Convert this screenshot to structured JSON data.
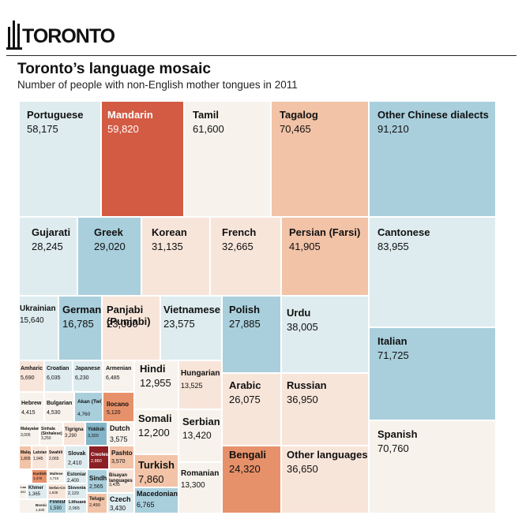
{
  "header": {
    "logo_text": "TORONTO",
    "title": "Toronto’s language mosaic",
    "subtitle": "Number of people with non-English mother tongues in 2011"
  },
  "palette": {
    "blue": "#a9cfdc",
    "pale_blue": "#deecef",
    "peach": "#f2c3a7",
    "light_peach": "#f8e5da",
    "cream": "#f7f3ec",
    "coral": "#e7916a",
    "red": "#d35a43",
    "dark_red": "#8b1f25",
    "mid_blue": "#83b4c8"
  },
  "chart_data": {
    "type": "treemap",
    "title": "Toronto’s language mosaic",
    "subtitle": "Number of people with non-English mother tongues in 2011",
    "items": [
      {
        "name": "Portuguese",
        "value_label": "58,175",
        "value": 58175
      },
      {
        "name": "Mandarin",
        "value_label": "59,820",
        "value": 59820
      },
      {
        "name": "Tamil",
        "value_label": "61,600",
        "value": 61600
      },
      {
        "name": "Tagalog",
        "value_label": "70,465",
        "value": 70465
      },
      {
        "name": "Other Chinese dialects",
        "value_label": "91,210",
        "value": 91210
      },
      {
        "name": "Gujarati",
        "value_label": "28,245",
        "value": 28245
      },
      {
        "name": "Greek",
        "value_label": "29,020",
        "value": 29020
      },
      {
        "name": "Korean",
        "value_label": "31,135",
        "value": 31135
      },
      {
        "name": "French",
        "value_label": "32,665",
        "value": 32665
      },
      {
        "name": "Persian (Farsi)",
        "value_label": "41,905",
        "value": 41905
      },
      {
        "name": "Cantonese",
        "value_label": "83,955",
        "value": 83955
      },
      {
        "name": "Ukrainian",
        "value_label": "15,640",
        "value": 15640
      },
      {
        "name": "German",
        "value_label": "16,785",
        "value": 16785
      },
      {
        "name": "Panjabi (Punjabi)",
        "value_label": "23,000",
        "value": 23000
      },
      {
        "name": "Vietnamese",
        "value_label": "23,575",
        "value": 23575
      },
      {
        "name": "Polish",
        "value_label": "27,885",
        "value": 27885
      },
      {
        "name": "Urdu",
        "value_label": "38,005",
        "value": 38005
      },
      {
        "name": "Italian",
        "value_label": "71,725",
        "value": 71725
      },
      {
        "name": "Amharic",
        "value_label": "5,690",
        "value": 5690
      },
      {
        "name": "Croatian",
        "value_label": "6,035",
        "value": 6035
      },
      {
        "name": "Japanese",
        "value_label": "6,230",
        "value": 6230
      },
      {
        "name": "Armenian",
        "value_label": "6,485",
        "value": 6485
      },
      {
        "name": "Hebrew",
        "value_label": "4,415",
        "value": 4415
      },
      {
        "name": "Bulgarian",
        "value_label": "4,530",
        "value": 4530
      },
      {
        "name": "Akan (Twi)",
        "value_label": "4,760",
        "value": 4760
      },
      {
        "name": "Ilocano",
        "value_label": "5,120",
        "value": 5120
      },
      {
        "name": "Malayalam",
        "value_label": "3,005",
        "value": 3005
      },
      {
        "name": "Sinhala (Sinhalese)",
        "value_label": "3,250",
        "value": 3250
      },
      {
        "name": "Tigrigna",
        "value_label": "3,290",
        "value": 3290
      },
      {
        "name": "Yiddish",
        "value_label": "3,320",
        "value": 3320
      },
      {
        "name": "Dutch",
        "value_label": "3,575",
        "value": 3575
      },
      {
        "name": "Malay",
        "value_label": "1,805",
        "value": 1805
      },
      {
        "name": "Latvian",
        "value_label": "1,945",
        "value": 1945
      },
      {
        "name": "Swahili",
        "value_label": "2,065",
        "value": 2065
      },
      {
        "name": "Slovak",
        "value_label": "2,410",
        "value": 2410
      },
      {
        "name": "Creoles",
        "value_label": "2,880",
        "value": 2880
      },
      {
        "name": "Pashto",
        "value_label": "3,570",
        "value": 3570
      },
      {
        "name": "Kurdish",
        "value_label": "1,475",
        "value": 1475
      },
      {
        "name": "Maltese",
        "value_label": "1,710",
        "value": 1710
      },
      {
        "name": "Estonian",
        "value_label": "2,400",
        "value": 2400
      },
      {
        "name": "Sindhi",
        "value_label": "2,565",
        "value": 2565
      },
      {
        "name": "Bisayan languages",
        "value_label": "3,435",
        "value": 3435
      },
      {
        "name": "Lao",
        "value_label": "880",
        "value": 880
      },
      {
        "name": "Khmer",
        "value_label": "1,365",
        "value": 1365
      },
      {
        "name": "Serbo-Croatian",
        "value_label": "1,635",
        "value": 1635
      },
      {
        "name": "Slovenian",
        "value_label": "2,120",
        "value": 2120
      },
      {
        "name": "Telugu",
        "value_label": "2,490",
        "value": 2490
      },
      {
        "name": "Czech",
        "value_label": "3,430",
        "value": 3430
      },
      {
        "name": "Bosnian",
        "value_label": "1,030",
        "value": 1030
      },
      {
        "name": "Finnish",
        "value_label": "1,590",
        "value": 1590
      },
      {
        "name": "Lithuanian",
        "value_label": "2,065",
        "value": 2065
      },
      {
        "name": "Hindi",
        "value_label": "12,955",
        "value": 12955
      },
      {
        "name": "Hungarian",
        "value_label": "13,525",
        "value": 13525
      },
      {
        "name": "Somali",
        "value_label": "12,200",
        "value": 12200
      },
      {
        "name": "Serbian",
        "value_label": "13,420",
        "value": 13420
      },
      {
        "name": "Turkish",
        "value_label": "7,860",
        "value": 7860
      },
      {
        "name": "Romanian",
        "value_label": "13,300",
        "value": 13300
      },
      {
        "name": "Macedonian",
        "value_label": "6,765",
        "value": 6765
      },
      {
        "name": "Arabic",
        "value_label": "26,075",
        "value": 26075
      },
      {
        "name": "Russian",
        "value_label": "36,950",
        "value": 36950
      },
      {
        "name": "Bengali",
        "value_label": "24,320",
        "value": 24320
      },
      {
        "name": "Other languages",
        "value_label": "36,650",
        "value": 36650
      },
      {
        "name": "Spanish",
        "value_label": "70,760",
        "value": 70760
      }
    ]
  }
}
